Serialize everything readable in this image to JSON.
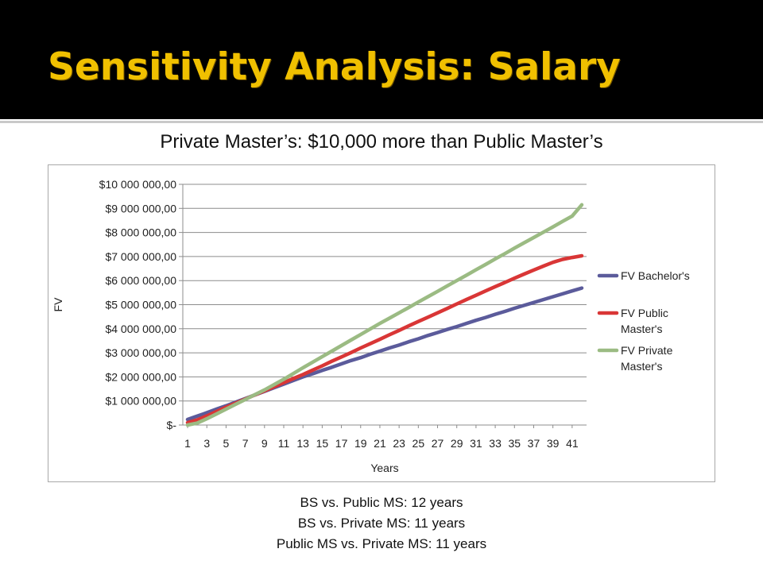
{
  "slide": {
    "title": "Sensitivity Analysis: Salary",
    "subtitle": "Private Master’s: $10,000 more than Public Master’s",
    "notes": [
      "BS vs. Public MS: 12 years",
      "BS vs. Private MS: 11 years",
      "Public MS vs. Private MS: 11 years"
    ],
    "colors": {
      "title": "#f0c000",
      "band": "#000000"
    }
  },
  "chart_data": {
    "type": "line",
    "xlabel": "Years",
    "ylabel": "FV",
    "ylim": [
      0,
      10000000
    ],
    "y_ticks": [
      0,
      1000000,
      2000000,
      3000000,
      4000000,
      5000000,
      6000000,
      7000000,
      8000000,
      9000000,
      10000000
    ],
    "y_tick_labels": [
      "$-",
      "$1 000 000,00",
      "$2 000 000,00",
      "$3 000 000,00",
      "$4 000 000,00",
      "$5 000 000,00",
      "$6 000 000,00",
      "$7 000 000,00",
      "$8 000 000,00",
      "$9 000 000,00",
      "$10 000 000,00"
    ],
    "x": [
      1,
      2,
      3,
      4,
      5,
      6,
      7,
      8,
      9,
      10,
      11,
      12,
      13,
      14,
      15,
      16,
      17,
      18,
      19,
      20,
      21,
      22,
      23,
      24,
      25,
      26,
      27,
      28,
      29,
      30,
      31,
      32,
      33,
      34,
      35,
      36,
      37,
      38,
      39,
      40,
      41,
      42
    ],
    "x_tick_labels": [
      "1",
      "3",
      "5",
      "7",
      "9",
      "11",
      "13",
      "15",
      "17",
      "19",
      "21",
      "23",
      "25",
      "27",
      "29",
      "31",
      "33",
      "35",
      "37",
      "39",
      "41"
    ],
    "grid": "horizontal",
    "legend_position": "right",
    "series": [
      {
        "name": "FV Bachelor's",
        "color": "#5b5b9b",
        "values": [
          230000,
          370000,
          510000,
          660000,
          800000,
          950000,
          1100000,
          1250000,
          1400000,
          1550000,
          1700000,
          1850000,
          2000000,
          2130000,
          2270000,
          2400000,
          2540000,
          2680000,
          2800000,
          2940000,
          3070000,
          3200000,
          3320000,
          3460000,
          3580000,
          3720000,
          3840000,
          3970000,
          4090000,
          4220000,
          4350000,
          4470000,
          4600000,
          4720000,
          4850000,
          4970000,
          5090000,
          5210000,
          5330000,
          5450000,
          5570000,
          5690000
        ]
      },
      {
        "name": "FV Public Master's",
        "color": "#d93636",
        "values": [
          100000,
          210000,
          380000,
          560000,
          740000,
          910000,
          1080000,
          1250000,
          1420000,
          1590000,
          1760000,
          1930000,
          2100000,
          2280000,
          2460000,
          2650000,
          2830000,
          3010000,
          3200000,
          3380000,
          3560000,
          3750000,
          3930000,
          4120000,
          4300000,
          4480000,
          4660000,
          4840000,
          5030000,
          5210000,
          5390000,
          5570000,
          5750000,
          5920000,
          6100000,
          6270000,
          6440000,
          6600000,
          6760000,
          6880000,
          6960000,
          7030000
        ]
      },
      {
        "name": "FV Private Master's",
        "color": "#9bbb83",
        "values": [
          0,
          80000,
          260000,
          460000,
          660000,
          860000,
          1060000,
          1260000,
          1460000,
          1680000,
          1900000,
          2140000,
          2380000,
          2610000,
          2840000,
          3070000,
          3300000,
          3530000,
          3760000,
          3990000,
          4220000,
          4440000,
          4660000,
          4880000,
          5110000,
          5330000,
          5550000,
          5780000,
          6000000,
          6220000,
          6450000,
          6670000,
          6900000,
          7120000,
          7350000,
          7570000,
          7790000,
          8010000,
          8230000,
          8460000,
          8680000,
          9150000
        ]
      }
    ]
  }
}
